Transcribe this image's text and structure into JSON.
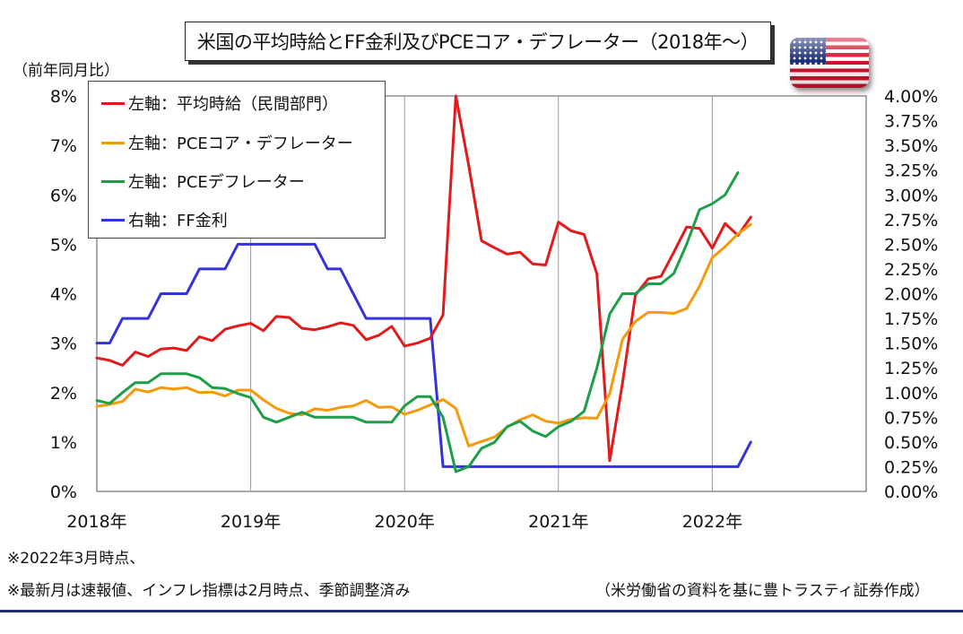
{
  "title": "米国の平均時給とFF金利及びPCEコア・デフレーター（2018年〜）",
  "unit_label": "（前年同月比）",
  "flag_icon": "us-flag-icon",
  "notes": [
    "※2022年3月時点、",
    "※最新月は速報値、インフレ指標は2月時点、季節調整済み"
  ],
  "source": "（米労働省の資料を基に豊トラスティ証券作成）",
  "chart_data": {
    "type": "line",
    "x_start": "2018-01",
    "x_ticks": [
      "2018年",
      "2019年",
      "2020年",
      "2021年",
      "2022年"
    ],
    "x_range": [
      "2018-01",
      "2022-12"
    ],
    "y_left": {
      "min": 0,
      "max": 8,
      "ticks": [
        "0%",
        "1%",
        "2%",
        "3%",
        "4%",
        "5%",
        "6%",
        "7%",
        "8%"
      ]
    },
    "y_right": {
      "min": 0,
      "max": 4,
      "ticks": [
        "0.00%",
        "0.25%",
        "0.50%",
        "0.75%",
        "1.00%",
        "1.25%",
        "1.50%",
        "1.75%",
        "2.00%",
        "2.25%",
        "2.50%",
        "2.75%",
        "3.00%",
        "3.25%",
        "3.50%",
        "3.75%",
        "4.00%"
      ]
    },
    "grid": "vertical",
    "legend_position": "top-left",
    "series": [
      {
        "name": "左軸：平均時給（民間部門）",
        "axis": "left",
        "color": "#e31a1c",
        "values": [
          2.7,
          2.65,
          2.55,
          2.82,
          2.73,
          2.88,
          2.9,
          2.85,
          3.13,
          3.05,
          3.28,
          3.35,
          3.4,
          3.25,
          3.54,
          3.52,
          3.3,
          3.27,
          3.33,
          3.41,
          3.36,
          3.07,
          3.16,
          3.34,
          2.94,
          3.0,
          3.1,
          3.57,
          8.0,
          6.6,
          5.07,
          4.93,
          4.8,
          4.84,
          4.6,
          4.58,
          5.45,
          5.27,
          5.2,
          4.4,
          0.62,
          2.2,
          3.97,
          4.3,
          4.35,
          4.84,
          5.35,
          5.32,
          4.92,
          5.42,
          5.18,
          5.55
        ]
      },
      {
        "name": "左軸：PCEコア・デフレーター",
        "axis": "left",
        "color": "#f59a0c",
        "values": [
          1.72,
          1.76,
          1.82,
          2.07,
          2.01,
          2.1,
          2.07,
          2.1,
          2.0,
          2.01,
          1.93,
          2.05,
          2.05,
          1.85,
          1.68,
          1.58,
          1.55,
          1.67,
          1.64,
          1.7,
          1.73,
          1.84,
          1.7,
          1.71,
          1.56,
          1.64,
          1.75,
          1.86,
          1.68,
          0.92,
          1.01,
          1.1,
          1.3,
          1.45,
          1.55,
          1.42,
          1.38,
          1.46,
          1.49,
          1.48,
          1.98,
          3.08,
          3.44,
          3.62,
          3.62,
          3.6,
          3.7,
          4.15,
          4.73,
          4.95,
          5.21,
          5.4
        ]
      },
      {
        "name": "左軸：PCEデフレーター",
        "axis": "left",
        "color": "#1f9e4a",
        "values": [
          1.84,
          1.78,
          2.0,
          2.2,
          2.2,
          2.38,
          2.38,
          2.38,
          2.3,
          2.1,
          2.08,
          1.98,
          1.9,
          1.5,
          1.4,
          1.5,
          1.6,
          1.5,
          1.5,
          1.5,
          1.5,
          1.4,
          1.4,
          1.4,
          1.73,
          1.92,
          1.92,
          1.5,
          0.4,
          0.5,
          0.87,
          0.99,
          1.31,
          1.42,
          1.22,
          1.11,
          1.31,
          1.42,
          1.62,
          2.5,
          3.59,
          4.0,
          4.0,
          4.2,
          4.2,
          4.41,
          5.0,
          5.7,
          5.82,
          6.0,
          6.45,
          null
        ]
      },
      {
        "name": "右軸：FF金利",
        "axis": "right",
        "color": "#3333dd",
        "values": [
          1.5,
          1.5,
          1.75,
          1.75,
          1.75,
          2.0,
          2.0,
          2.0,
          2.25,
          2.25,
          2.25,
          2.5,
          2.5,
          2.5,
          2.5,
          2.5,
          2.5,
          2.5,
          2.25,
          2.25,
          2.0,
          1.75,
          1.75,
          1.75,
          1.75,
          1.75,
          1.75,
          0.25,
          0.25,
          0.25,
          0.25,
          0.25,
          0.25,
          0.25,
          0.25,
          0.25,
          0.25,
          0.25,
          0.25,
          0.25,
          0.25,
          0.25,
          0.25,
          0.25,
          0.25,
          0.25,
          0.25,
          0.25,
          0.25,
          0.25,
          0.25,
          0.5
        ]
      }
    ]
  }
}
